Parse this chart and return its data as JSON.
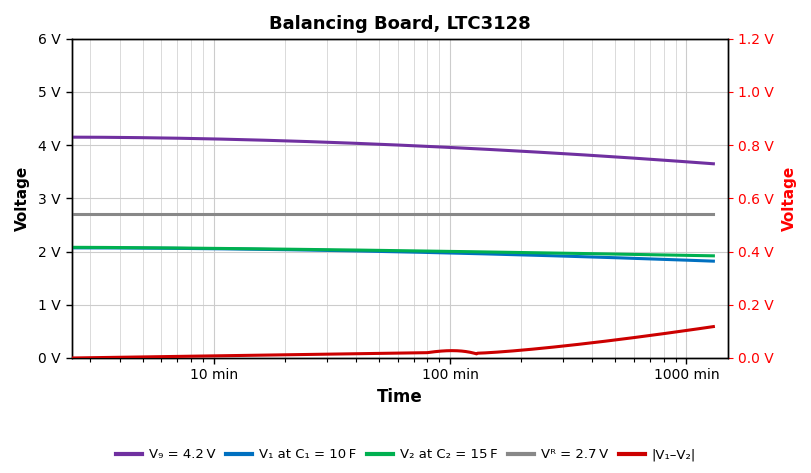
{
  "title": "Balancing Board, LTC3128",
  "xlabel": "Time",
  "ylabel_left": "Voltage",
  "ylabel_right": "Voltage",
  "xlim_log": [
    2.5,
    1500
  ],
  "ylim_left": [
    0,
    6
  ],
  "ylim_right": [
    0,
    1.2
  ],
  "yticks_left": [
    0,
    1,
    2,
    3,
    4,
    5,
    6
  ],
  "ytick_labels_left": [
    "0 V",
    "1 V",
    "2 V",
    "3 V",
    "4 V",
    "5 V",
    "6 V"
  ],
  "yticks_right": [
    0.0,
    0.2,
    0.4,
    0.6,
    0.8,
    1.0,
    1.2
  ],
  "ytick_labels_right": [
    "0.0 V",
    "0.2 V",
    "0.4 V",
    "0.6 V",
    "0.8 V",
    "1.0 V",
    "1.2 V"
  ],
  "xticks": [
    10,
    100,
    1000
  ],
  "xtick_labels": [
    "10 min",
    "100 min",
    "1000 min"
  ],
  "colors": {
    "Vg": "#7030A0",
    "V1": "#0070C0",
    "V2": "#00B050",
    "Vr": "#888888",
    "Vdiff": "#CC0000"
  },
  "line_widths": {
    "Vg": 2.2,
    "V1": 2.2,
    "V2": 2.2,
    "Vr": 2.2,
    "Vdiff": 2.2
  },
  "background_color": "#ffffff",
  "grid_color": "#cccccc"
}
